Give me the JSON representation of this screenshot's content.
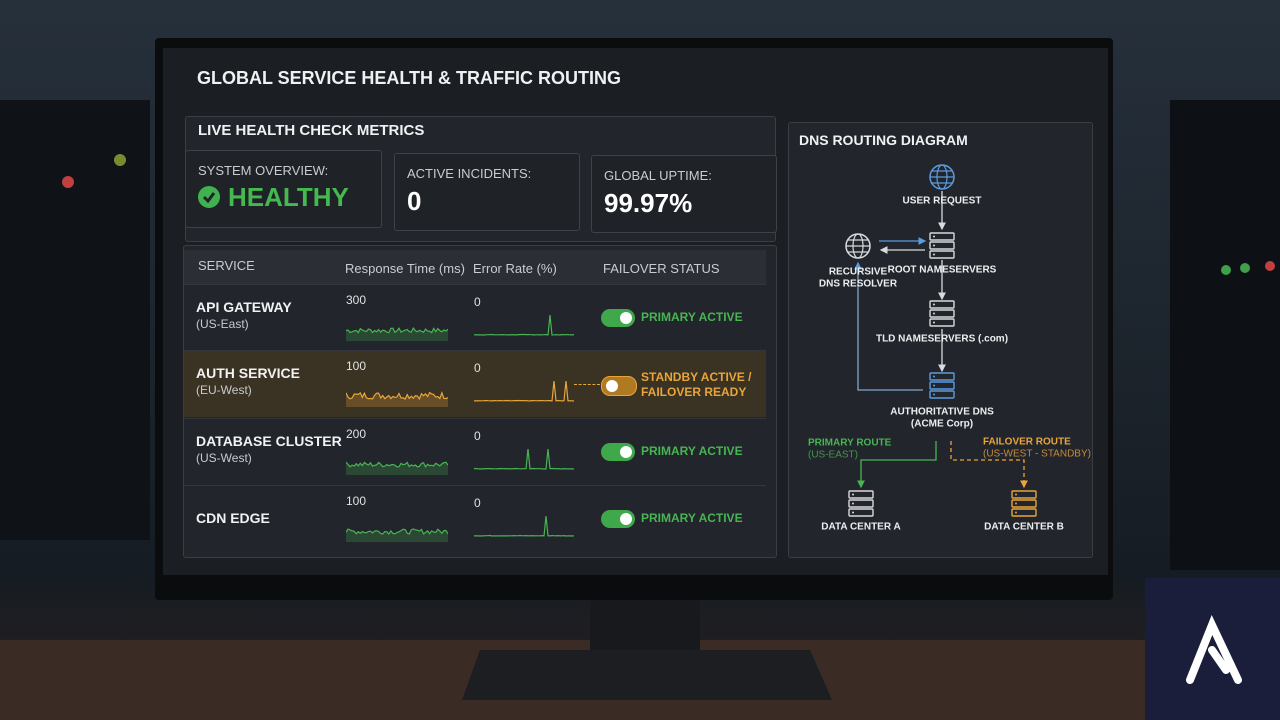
{
  "header": {
    "title": "GLOBAL SERVICE HEALTH & TRAFFIC ROUTING"
  },
  "metrics": {
    "title": "LIVE HEALTH CHECK METRICS",
    "cards": [
      {
        "label": "SYSTEM OVERVIEW:",
        "value": "HEALTHY"
      },
      {
        "label": "ACTIVE INCIDENTS:",
        "value": "0"
      },
      {
        "label": "GLOBAL UPTIME:",
        "value": "99.97%"
      }
    ]
  },
  "table": {
    "columns": [
      "SERVICE",
      "Response Time (ms)",
      "Error Rate (%)",
      "FAILOVER STATUS"
    ],
    "rows": [
      {
        "service": "API GATEWAY",
        "region": "(US-East)",
        "response": "300",
        "error": "0",
        "status": "PRIMARY ACTIVE"
      },
      {
        "service": "AUTH SERVICE",
        "region": "(EU-West)",
        "response": "100",
        "error": "0",
        "status": "STANDBY ACTIVE / FAILOVER READY"
      },
      {
        "service": "DATABASE CLUSTER",
        "region": "(US-West)",
        "response": "200",
        "error": "0",
        "status": "PRIMARY ACTIVE"
      },
      {
        "service": "CDN EDGE",
        "response": "100",
        "error": "0",
        "status": "PRIMARY ACTIVE"
      }
    ]
  },
  "diagram": {
    "title": "DNS ROUTING DIAGRAM",
    "nodes": [
      {
        "label": [
          "USER REQUEST"
        ]
      },
      {
        "label": [
          "ROOT NAMESERVERS"
        ]
      },
      {
        "label": [
          "RECURSIVE",
          "DNS RESOLVER"
        ]
      },
      {
        "label": [
          "TLD NAMESERVERS (.com)"
        ]
      },
      {
        "label": [
          "AUTHORITATIVE DNS",
          "(ACME Corp)"
        ]
      },
      {
        "label": [
          "DATA CENTER A"
        ]
      },
      {
        "label": [
          "DATA CENTER B"
        ]
      }
    ],
    "routes": [
      {
        "label": "PRIMARY ROUTE",
        "sub": "(US-EAST)"
      },
      {
        "label": "FAILOVER ROUTE",
        "sub": "(US-WEST - STANDBY)"
      }
    ]
  }
}
